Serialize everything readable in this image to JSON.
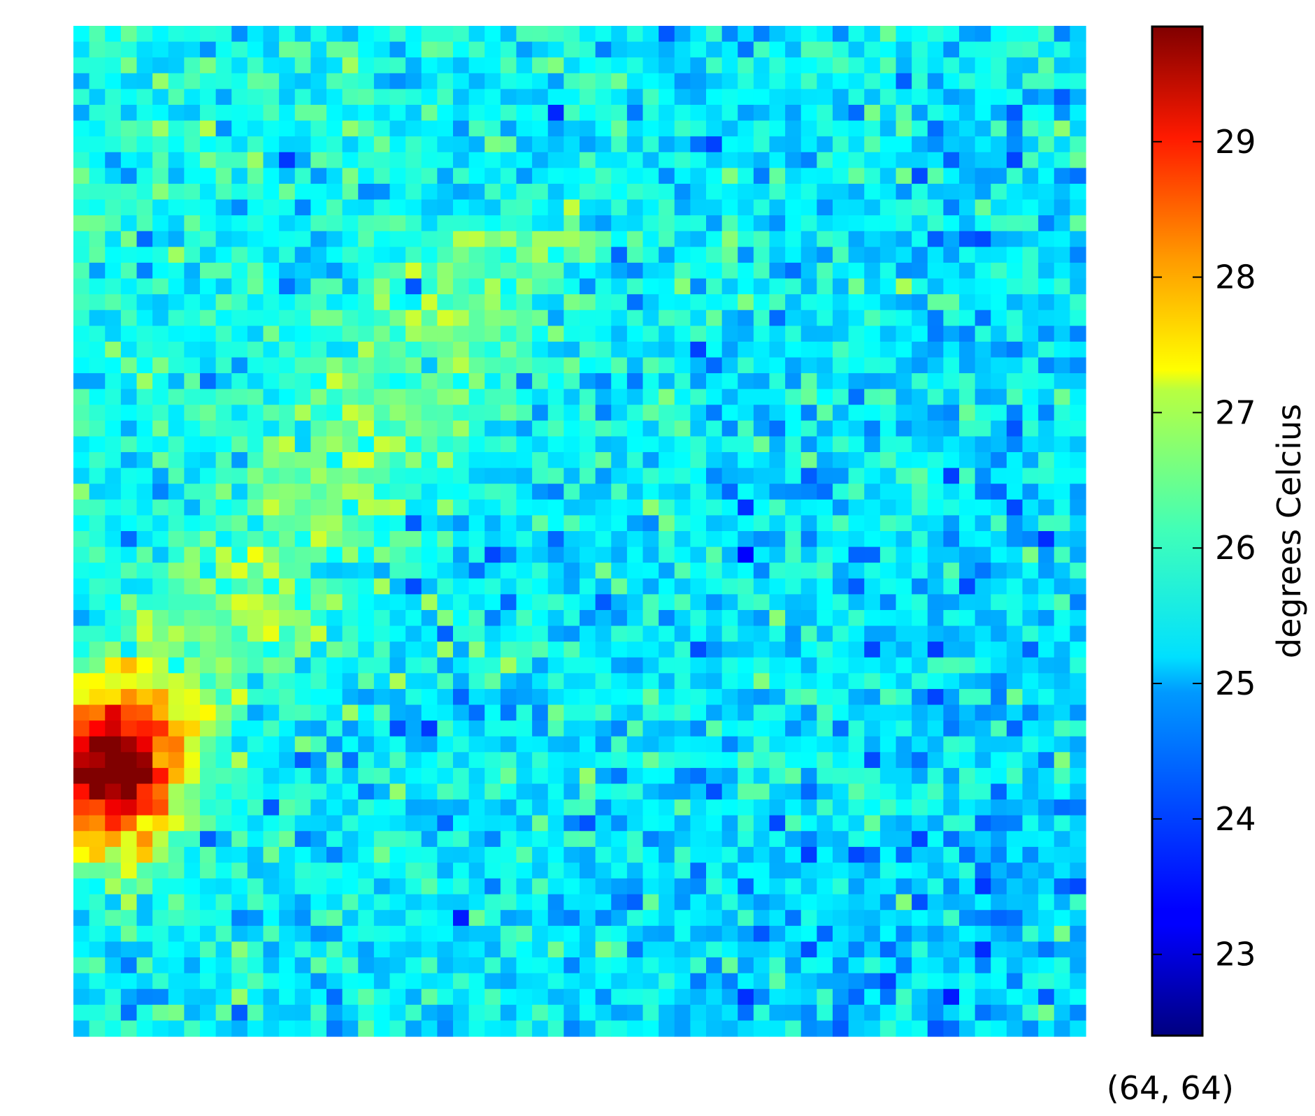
{
  "chart_data": {
    "type": "heatmap",
    "title": "",
    "xlabel": "",
    "ylabel": "",
    "grid_shape": [
      64,
      64
    ],
    "value_range": [
      22.4,
      29.85
    ],
    "colormap": "jet",
    "hot_spot": {
      "center_row": 47,
      "center_col": 2,
      "peak_value": 29.8
    },
    "colorbar": {
      "label": "degrees Celcius",
      "ticks": [
        23,
        24,
        25,
        26,
        27,
        28,
        29
      ],
      "tick_labels": [
        "23",
        "24",
        "25",
        "26",
        "27",
        "28",
        "29"
      ]
    },
    "annotation": "(64, 64)"
  }
}
